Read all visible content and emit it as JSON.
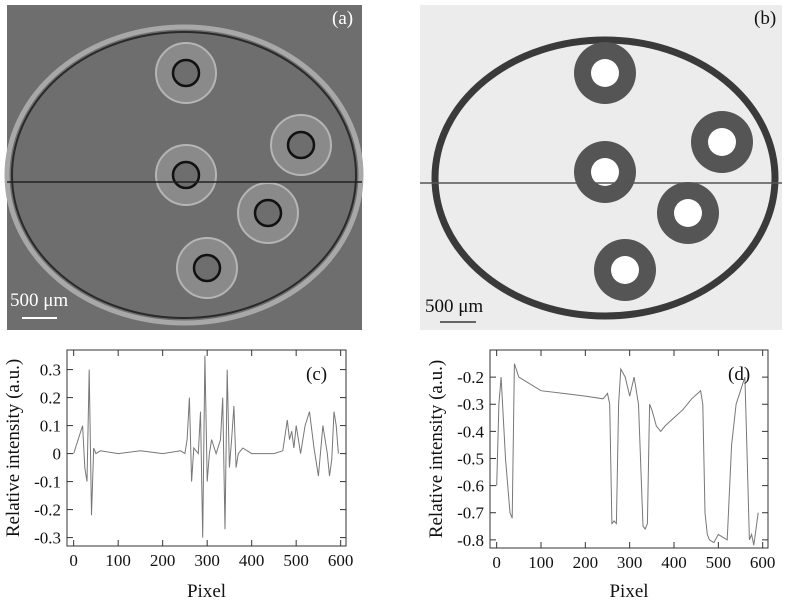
{
  "images": [
    {
      "label": "(a)",
      "scale_bar": "500 μm"
    },
    {
      "label": "(b)",
      "scale_bar": "500 μm"
    }
  ],
  "chart_data": [
    {
      "type": "line",
      "label": "(c)",
      "x_label": "Pixel",
      "y_label": "Relative intensity (a.u.)",
      "x": [
        0,
        10,
        20,
        25,
        30,
        35,
        40,
        45,
        50,
        60,
        100,
        150,
        200,
        240,
        250,
        255,
        260,
        265,
        270,
        280,
        285,
        290,
        295,
        300,
        305,
        310,
        320,
        330,
        335,
        340,
        345,
        350,
        355,
        360,
        365,
        370,
        380,
        400,
        450,
        470,
        480,
        485,
        490,
        495,
        500,
        510,
        520,
        530,
        540,
        550,
        560,
        570,
        575,
        580,
        585,
        590,
        595
      ],
      "values": [
        0,
        0.05,
        0.1,
        -0.05,
        -0.1,
        0.3,
        -0.22,
        0.02,
        0,
        0.01,
        0,
        0.01,
        0,
        0.01,
        0,
        0.05,
        0.2,
        -0.1,
        0.02,
        0,
        0.15,
        -0.3,
        0.35,
        -0.1,
        0,
        0.05,
        0,
        0.05,
        0.2,
        -0.27,
        0.3,
        -0.05,
        0.05,
        0.17,
        -0.05,
        0,
        0.02,
        0,
        0,
        0.01,
        0.12,
        0.05,
        0.08,
        0.02,
        0.1,
        0,
        0.1,
        0.15,
        0.02,
        -0.08,
        0.1,
        0,
        -0.08,
        -0.02,
        0.15,
        0.1,
        0
      ],
      "color": "#777777",
      "xlim": [
        -15,
        612
      ],
      "ylim": [
        -0.33,
        0.37
      ],
      "xticks": [
        0,
        100,
        200,
        300,
        400,
        500,
        600
      ],
      "yticks": [
        -0.3,
        -0.2,
        -0.1,
        0,
        0.1,
        0.2,
        0.3
      ]
    },
    {
      "type": "line",
      "label": "(d)",
      "x_label": "Pixel",
      "y_label": "Relative intensity (a.u.)",
      "x": [
        0,
        5,
        10,
        20,
        30,
        35,
        40,
        50,
        100,
        150,
        200,
        240,
        250,
        255,
        260,
        265,
        270,
        275,
        280,
        290,
        300,
        310,
        320,
        330,
        335,
        340,
        345,
        350,
        355,
        360,
        370,
        380,
        400,
        420,
        440,
        460,
        465,
        470,
        475,
        480,
        490,
        500,
        510,
        520,
        530,
        540,
        550,
        560,
        565,
        570,
        575,
        580,
        590
      ],
      "values": [
        -0.6,
        -0.3,
        -0.2,
        -0.5,
        -0.7,
        -0.72,
        -0.15,
        -0.2,
        -0.25,
        -0.26,
        -0.27,
        -0.28,
        -0.26,
        -0.3,
        -0.74,
        -0.73,
        -0.74,
        -0.3,
        -0.17,
        -0.2,
        -0.27,
        -0.2,
        -0.3,
        -0.75,
        -0.76,
        -0.74,
        -0.3,
        -0.32,
        -0.35,
        -0.38,
        -0.4,
        -0.38,
        -0.35,
        -0.32,
        -0.28,
        -0.25,
        -0.3,
        -0.7,
        -0.78,
        -0.8,
        -0.81,
        -0.78,
        -0.79,
        -0.8,
        -0.45,
        -0.3,
        -0.25,
        -0.2,
        -0.5,
        -0.8,
        -0.78,
        -0.82,
        -0.7
      ],
      "color": "#777777",
      "xlim": [
        -15,
        612
      ],
      "ylim": [
        -0.83,
        -0.1
      ],
      "xticks": [
        0,
        100,
        200,
        300,
        400,
        500,
        600
      ],
      "yticks": [
        -0.8,
        -0.7,
        -0.6,
        -0.5,
        -0.4,
        -0.3,
        -0.2
      ]
    }
  ]
}
